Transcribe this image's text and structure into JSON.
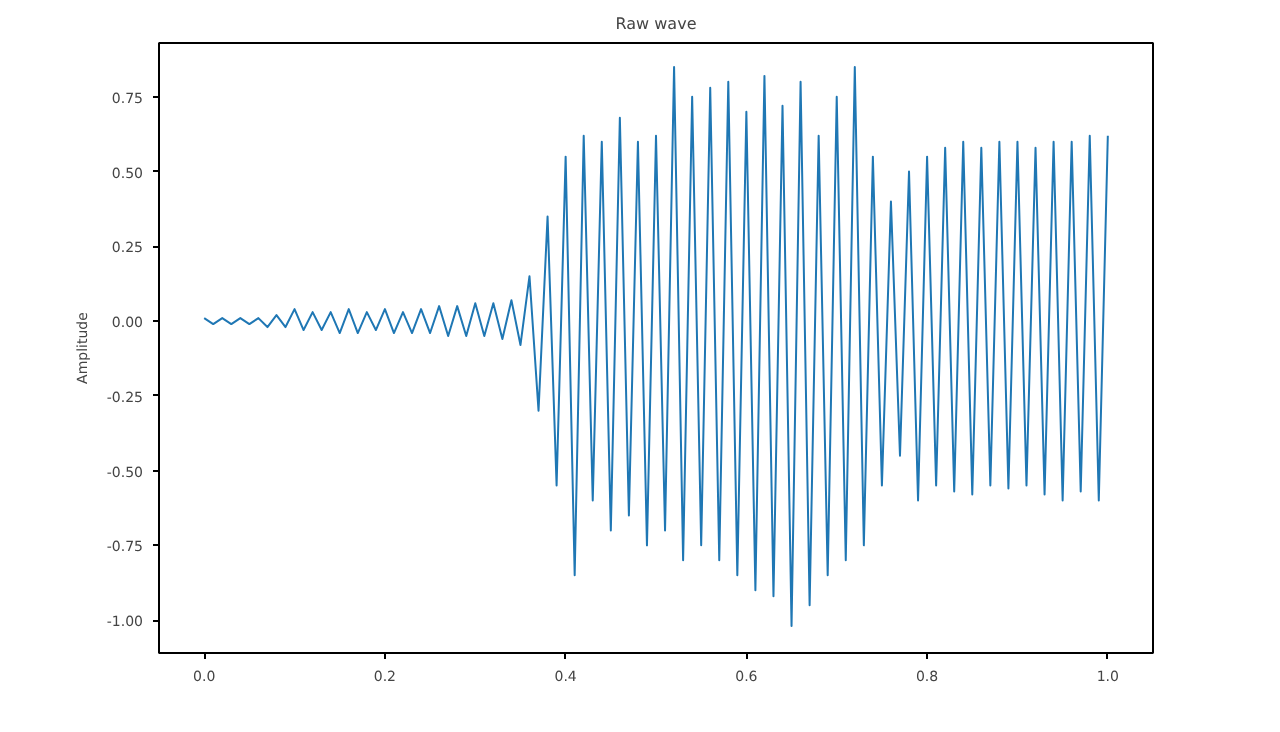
{
  "chart_data": {
    "type": "line",
    "title": "Raw wave",
    "ylabel": "Amplitude",
    "x": [
      0.0,
      0.01,
      0.02,
      0.03,
      0.04,
      0.05,
      0.06,
      0.07,
      0.08,
      0.09,
      0.1,
      0.11,
      0.12,
      0.13,
      0.14,
      0.15,
      0.16,
      0.17,
      0.18,
      0.19,
      0.2,
      0.21,
      0.22,
      0.23,
      0.24,
      0.25,
      0.26,
      0.27,
      0.28,
      0.29,
      0.3,
      0.31,
      0.32,
      0.33,
      0.34,
      0.35,
      0.36,
      0.37,
      0.38,
      0.39,
      0.4,
      0.41,
      0.42,
      0.43,
      0.44,
      0.45,
      0.46,
      0.47,
      0.48,
      0.49,
      0.5,
      0.51,
      0.52,
      0.53,
      0.54,
      0.55,
      0.56,
      0.57,
      0.58,
      0.59,
      0.6,
      0.61,
      0.62,
      0.63,
      0.64,
      0.65,
      0.66,
      0.67,
      0.68,
      0.69,
      0.7,
      0.71,
      0.72,
      0.73,
      0.74,
      0.75,
      0.76,
      0.77,
      0.78,
      0.79,
      0.8,
      0.81,
      0.82,
      0.83,
      0.84,
      0.85,
      0.86,
      0.87,
      0.88,
      0.89,
      0.9,
      0.91,
      0.92,
      0.93,
      0.94,
      0.95,
      0.96,
      0.97,
      0.98,
      0.99,
      1.0
    ],
    "series": [
      {
        "color": "#1f77b4",
        "values": [
          0.01,
          -0.01,
          0.01,
          -0.01,
          0.01,
          -0.01,
          0.01,
          -0.02,
          0.02,
          -0.02,
          0.04,
          -0.03,
          0.03,
          -0.03,
          0.03,
          -0.04,
          0.04,
          -0.04,
          0.03,
          -0.03,
          0.04,
          -0.04,
          0.03,
          -0.04,
          0.04,
          -0.04,
          0.05,
          -0.05,
          0.05,
          -0.05,
          0.06,
          -0.05,
          0.06,
          -0.06,
          0.07,
          -0.08,
          0.15,
          -0.3,
          0.35,
          -0.55,
          0.55,
          -0.85,
          0.62,
          -0.6,
          0.6,
          -0.7,
          0.68,
          -0.65,
          0.6,
          -0.75,
          0.62,
          -0.7,
          0.85,
          -0.8,
          0.75,
          -0.75,
          0.78,
          -0.8,
          0.8,
          -0.85,
          0.7,
          -0.9,
          0.82,
          -0.92,
          0.72,
          -1.02,
          0.8,
          -0.95,
          0.62,
          -0.85,
          0.75,
          -0.8,
          0.85,
          -0.75,
          0.55,
          -0.55,
          0.4,
          -0.45,
          0.5,
          -0.6,
          0.55,
          -0.55,
          0.58,
          -0.57,
          0.6,
          -0.58,
          0.58,
          -0.55,
          0.6,
          -0.56,
          0.6,
          -0.55,
          0.58,
          -0.58,
          0.6,
          -0.6,
          0.6,
          -0.57,
          0.62,
          -0.6,
          0.62
        ]
      }
    ],
    "xlim": [
      -0.05,
      1.05
    ],
    "ylim": [
      -1.11,
      0.93
    ],
    "xticks": [
      {
        "value": 0,
        "label": "0.0"
      },
      {
        "value": 0.2,
        "label": "0.2"
      },
      {
        "value": 0.4,
        "label": "0.4"
      },
      {
        "value": 0.6,
        "label": "0.6"
      },
      {
        "value": 0.8,
        "label": "0.8"
      },
      {
        "value": 1,
        "label": "1.0"
      }
    ],
    "yticks": [
      {
        "value": -1,
        "label": "-1.00"
      },
      {
        "value": -0.75,
        "label": "-0.75"
      },
      {
        "value": -0.5,
        "label": "-0.50"
      },
      {
        "value": -0.25,
        "label": "-0.25"
      },
      {
        "value": 0,
        "label": "0.00"
      },
      {
        "value": 0.25,
        "label": "0.25"
      },
      {
        "value": 0.5,
        "label": "0.50"
      },
      {
        "value": 0.75,
        "label": "0.75"
      }
    ],
    "grid": false,
    "line_style": "solid"
  }
}
